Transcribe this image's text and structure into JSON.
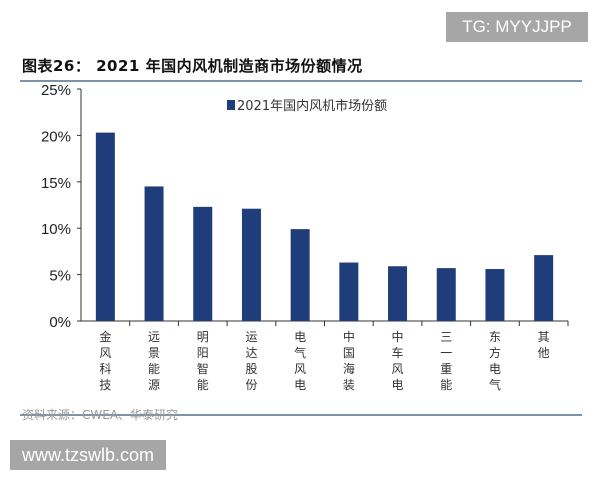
{
  "watermarks": {
    "top": "TG: MYYJJPP",
    "bottom": "www.tzswlb.com"
  },
  "header": {
    "title": "图表26： 2021 年国内风机制造商市场份额情况"
  },
  "footer": {
    "source": "资料来源：CWEA、华泰研究"
  },
  "chart_data": {
    "type": "bar",
    "title": "图表26： 2021 年国内风机制造商市场份额情况",
    "categories": [
      "金风科技",
      "远景能源",
      "明阳智能",
      "运达股份",
      "电气风电",
      "中国海装",
      "中车风电",
      "三一重能",
      "东方电气",
      "其他"
    ],
    "series": [
      {
        "name": "2021年国内风机市场份额",
        "values": [
          20.3,
          14.5,
          12.3,
          12.1,
          9.9,
          6.3,
          5.9,
          5.7,
          5.6,
          7.1
        ]
      }
    ],
    "ylim": [
      0,
      25
    ],
    "yticks": [
      "0%",
      "5%",
      "10%",
      "15%",
      "20%",
      "25%"
    ],
    "xlabel": "",
    "ylabel": "",
    "legend": "top-center",
    "grid": false,
    "colors": {
      "bar": "#1f3d7a"
    }
  }
}
